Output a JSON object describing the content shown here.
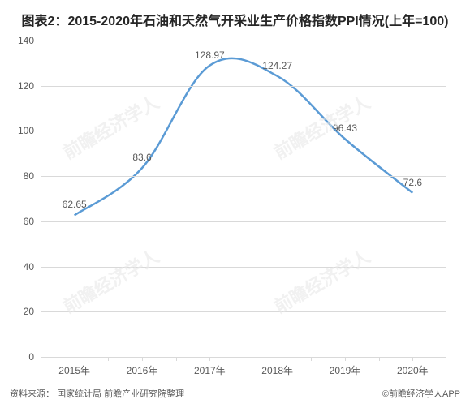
{
  "title": "图表2：2015-2020年石油和天然气开采业生产价格指数PPI情况(上年=100)",
  "chart": {
    "type": "line",
    "categories": [
      "2015年",
      "2016年",
      "2017年",
      "2018年",
      "2019年",
      "2020年"
    ],
    "values": [
      62.65,
      83.6,
      128.97,
      124.27,
      96.43,
      72.6
    ],
    "line_color": "#5b9bd5",
    "line_width": 2.5,
    "ylim": [
      0,
      140
    ],
    "ytick_step": 20,
    "yticks": [
      0,
      20,
      40,
      60,
      80,
      100,
      120,
      140
    ],
    "background_color": "#ffffff",
    "grid_color": "#d9d9d9",
    "label_fontsize": 12,
    "label_color": "#595959",
    "title_fontsize": 16,
    "title_color": "#262626",
    "smooth": true
  },
  "watermark": {
    "text": "前瞻经济学人"
  },
  "footer": {
    "source_label": "资料来源：",
    "source_text": "国家统计局 前瞻产业研究院整理",
    "right_text": "©前瞻经济学人APP"
  }
}
